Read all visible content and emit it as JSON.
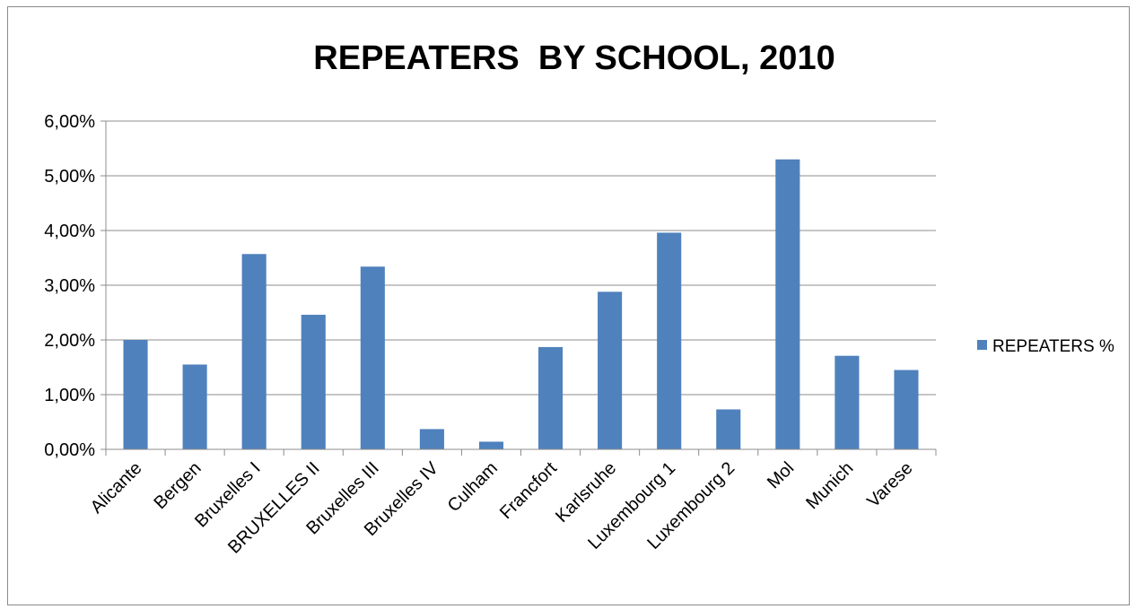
{
  "chart_data": {
    "type": "bar",
    "title": "REPEATERS  BY SCHOOL, 2010",
    "categories": [
      "Alicante",
      "Bergen",
      "Bruxelles I",
      "BRUXELLES II",
      "Bruxelles III",
      "Bruxelles IV",
      "Culham",
      "Francfort",
      "Karlsruhe",
      "Luxembourg 1",
      "Luxembourg 2",
      "Mol",
      "Munich",
      "Varese"
    ],
    "series": [
      {
        "name": "REPEATERS %",
        "values": [
          0.02,
          0.0155,
          0.0357,
          0.0246,
          0.0334,
          0.0037,
          0.0014,
          0.0187,
          0.0288,
          0.0396,
          0.0073,
          0.053,
          0.0171,
          0.0145
        ],
        "color": "#4f81bd"
      }
    ],
    "ylim": [
      0,
      0.06
    ],
    "yticks": [
      "0,00%",
      "1,00%",
      "2,00%",
      "3,00%",
      "4,00%",
      "5,00%",
      "6,00%"
    ],
    "grid": true,
    "legend_position": "right"
  }
}
